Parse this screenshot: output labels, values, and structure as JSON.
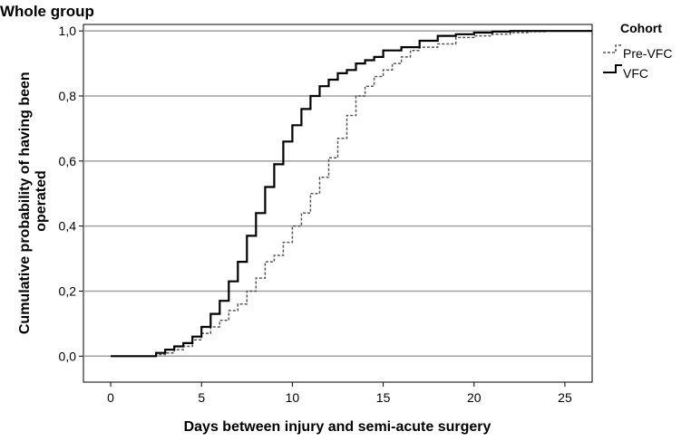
{
  "chart_data": {
    "type": "line",
    "title": "Whole group",
    "xlabel": "Days between injury and semi-acute surgery",
    "ylabel": "Cumulative probability of having been operated",
    "xlim": [
      -1.5,
      26.5
    ],
    "ylim": [
      -0.08,
      1.02
    ],
    "x_ticks": [
      0,
      5,
      10,
      15,
      20,
      25
    ],
    "y_ticks": [
      0.0,
      0.2,
      0.4,
      0.6,
      0.8,
      1.0
    ],
    "x_tick_labels": [
      "0",
      "5",
      "10",
      "15",
      "20",
      "25"
    ],
    "y_tick_labels": [
      "0,0",
      "0,2",
      "0,4",
      "0,6",
      "0,8",
      "1,0"
    ],
    "grid": "horizontal",
    "legend": {
      "title": "Cohort",
      "position": "right"
    },
    "series": [
      {
        "name": "Pre-VFC",
        "style": "dashed",
        "color": "#555555",
        "x": [
          0,
          2,
          2.5,
          3,
          3.5,
          4,
          4.5,
          5,
          5.5,
          6,
          6.5,
          7,
          7.5,
          8,
          8.5,
          9,
          9.5,
          10,
          10.5,
          11,
          11.5,
          12,
          12.5,
          13,
          13.5,
          14,
          14.5,
          15,
          15.5,
          16,
          16.5,
          17,
          18,
          19,
          20,
          21,
          22,
          23,
          24,
          25,
          26.5
        ],
        "values": [
          0,
          0,
          0.005,
          0.01,
          0.02,
          0.03,
          0.05,
          0.07,
          0.09,
          0.11,
          0.14,
          0.16,
          0.2,
          0.24,
          0.29,
          0.31,
          0.35,
          0.4,
          0.44,
          0.5,
          0.55,
          0.61,
          0.67,
          0.74,
          0.8,
          0.83,
          0.86,
          0.88,
          0.9,
          0.92,
          0.94,
          0.95,
          0.96,
          0.98,
          0.985,
          0.99,
          0.995,
          0.998,
          1.0,
          1.0,
          1.0
        ]
      },
      {
        "name": "VFC",
        "style": "solid",
        "color": "#000000",
        "x": [
          0,
          1.8,
          2.5,
          3,
          3.5,
          4,
          4.5,
          5,
          5.5,
          6,
          6.5,
          7,
          7.5,
          8,
          8.5,
          9,
          9.5,
          10,
          10.5,
          11,
          11.5,
          12,
          12.5,
          13,
          13.5,
          14,
          14.5,
          15,
          16,
          17,
          18,
          19,
          20,
          21,
          22,
          23,
          24,
          25,
          26.5
        ],
        "values": [
          0,
          0,
          0.01,
          0.02,
          0.03,
          0.04,
          0.06,
          0.09,
          0.13,
          0.17,
          0.23,
          0.29,
          0.37,
          0.44,
          0.52,
          0.59,
          0.66,
          0.71,
          0.76,
          0.8,
          0.83,
          0.85,
          0.87,
          0.88,
          0.9,
          0.91,
          0.92,
          0.94,
          0.95,
          0.97,
          0.985,
          0.99,
          0.995,
          0.998,
          1.0,
          1.0,
          1.0,
          1.0,
          1.0
        ]
      }
    ]
  }
}
